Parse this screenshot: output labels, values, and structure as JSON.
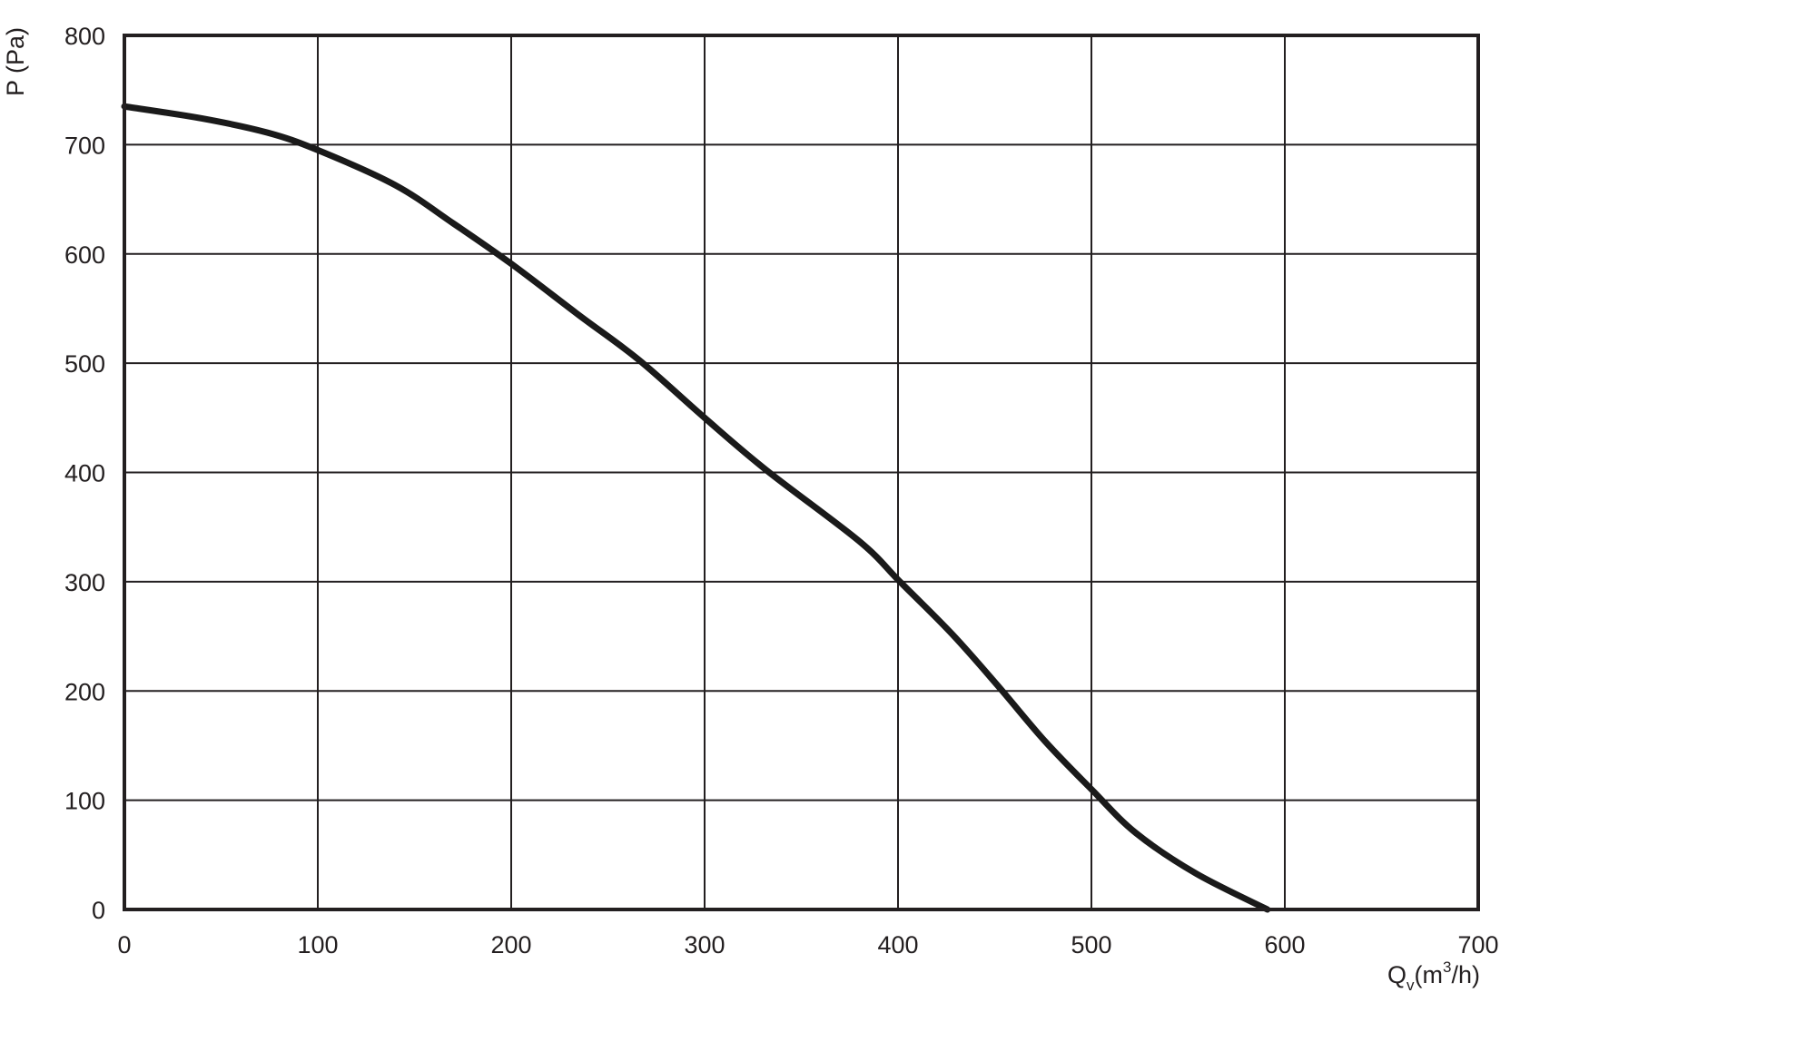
{
  "chart_data": {
    "type": "line",
    "title": "",
    "xlabel": "Q",
    "xlabel_subscript": "v",
    "xlabel_unit_pre": "(m",
    "xlabel_unit_sup": "3",
    "xlabel_unit_post": "/h)",
    "ylabel": "P (Pa)",
    "xlim": [
      0,
      700
    ],
    "ylim": [
      0,
      800
    ],
    "grid": true,
    "x_ticks": [
      0,
      100,
      200,
      300,
      400,
      500,
      600,
      700
    ],
    "y_ticks": [
      0,
      100,
      200,
      300,
      400,
      500,
      600,
      700,
      800
    ],
    "series": [
      {
        "color": "#1a1a1a",
        "x": [
          0,
          40,
          74,
          100,
          140,
          170,
          200,
          235,
          266,
          300,
          332,
          380,
          401,
          428,
          452,
          476,
          500,
          523,
          554,
          591
        ],
        "y": [
          735,
          724,
          711,
          695,
          663,
          628,
          591,
          544,
          503,
          450,
          402,
          337,
          300,
          252,
          204,
          154,
          110,
          70,
          33,
          0
        ]
      }
    ]
  }
}
